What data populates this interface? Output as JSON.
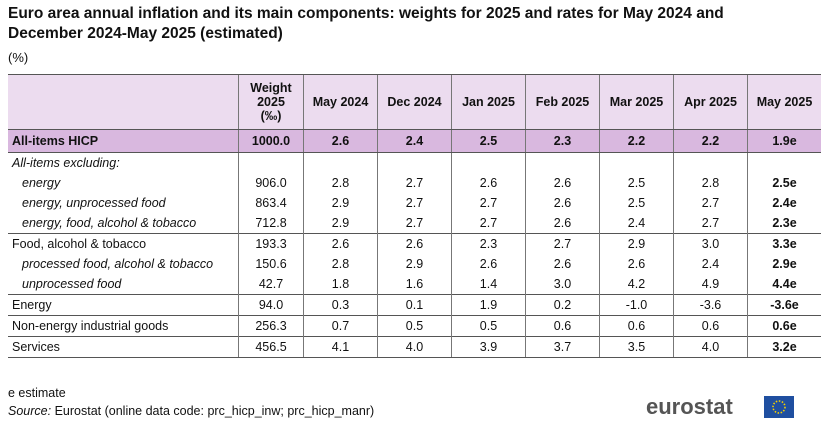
{
  "header": {
    "title": "Euro area annual inflation and its main components: weights for 2025 and rates for May 2024 and December 2024-May 2025 (estimated)",
    "unit": "(%)"
  },
  "table": {
    "columns": [
      "",
      "Weight\n2025\n(‰)",
      "May 2024",
      "Dec 2024",
      "Jan 2025",
      "Feb 2025",
      "Mar 2025",
      "Apr 2025",
      "May 2025"
    ],
    "rows": [
      {
        "label": "All-items HICP",
        "values": [
          "1000.0",
          "2.6",
          "2.4",
          "2.5",
          "2.3",
          "2.2",
          "2.2",
          "1.9e"
        ]
      },
      {
        "label": "All-items excluding:",
        "values": []
      },
      {
        "label": "energy",
        "values": [
          "906.0",
          "2.8",
          "2.7",
          "2.6",
          "2.6",
          "2.5",
          "2.8",
          "2.5e"
        ]
      },
      {
        "label": "energy, unprocessed food",
        "values": [
          "863.4",
          "2.9",
          "2.7",
          "2.7",
          "2.6",
          "2.5",
          "2.7",
          "2.4e"
        ]
      },
      {
        "label": "energy, food, alcohol & tobacco",
        "values": [
          "712.8",
          "2.9",
          "2.7",
          "2.7",
          "2.6",
          "2.4",
          "2.7",
          "2.3e"
        ]
      },
      {
        "label": "Food, alcohol & tobacco",
        "values": [
          "193.3",
          "2.6",
          "2.6",
          "2.3",
          "2.7",
          "2.9",
          "3.0",
          "3.3e"
        ]
      },
      {
        "label": "processed food, alcohol & tobacco",
        "values": [
          "150.6",
          "2.8",
          "2.9",
          "2.6",
          "2.6",
          "2.6",
          "2.4",
          "2.9e"
        ]
      },
      {
        "label": "unprocessed food",
        "values": [
          "42.7",
          "1.8",
          "1.6",
          "1.4",
          "3.0",
          "4.2",
          "4.9",
          "4.4e"
        ]
      },
      {
        "label": "Energy",
        "values": [
          "94.0",
          "0.3",
          "0.1",
          "1.9",
          "0.2",
          "-1.0",
          "-3.6",
          "-3.6e"
        ]
      },
      {
        "label": "Non-energy industrial goods",
        "values": [
          "256.3",
          "0.7",
          "0.5",
          "0.5",
          "0.6",
          "0.6",
          "0.6",
          "0.6e"
        ]
      },
      {
        "label": "Services",
        "values": [
          "456.5",
          "4.1",
          "4.0",
          "3.9",
          "3.7",
          "3.5",
          "4.0",
          "3.2e"
        ]
      }
    ]
  },
  "footer": {
    "note": "e estimate",
    "source_label": "Source:",
    "source_text": "Eurostat (online data code: prc_hicp_inw; prc_hicp_manr)",
    "logo": "eurostat"
  }
}
